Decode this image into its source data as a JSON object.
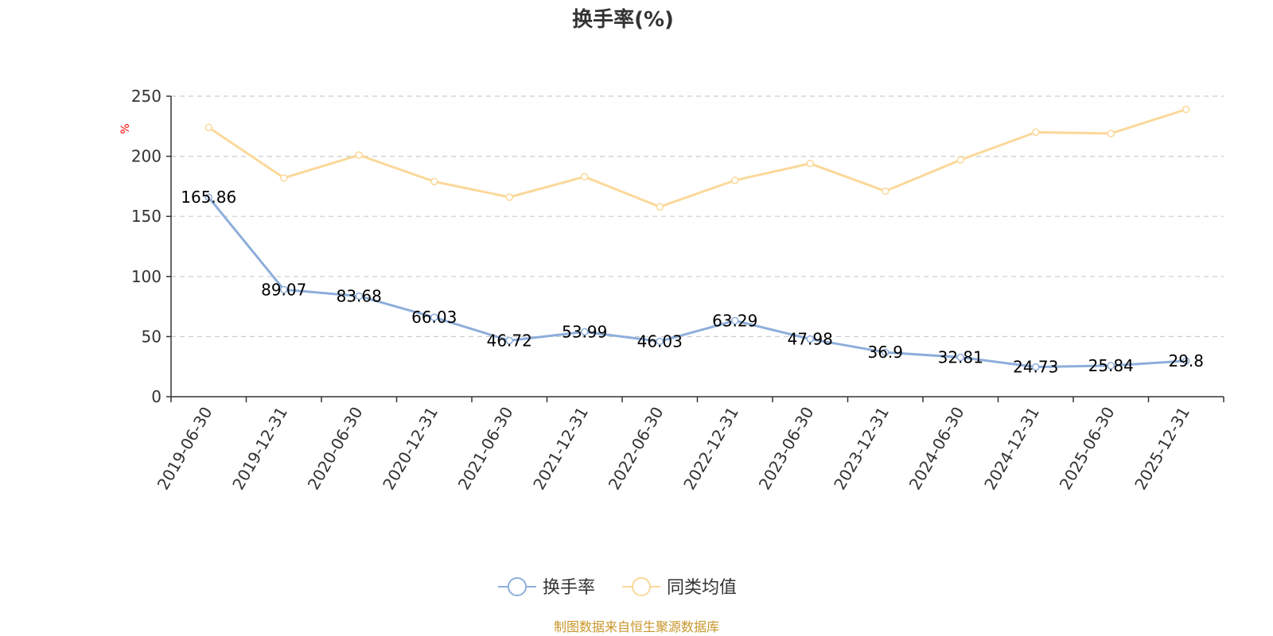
{
  "chart_data": {
    "type": "line",
    "title": "换手率(%)",
    "ylabel": "%",
    "xlabel": "",
    "ylim": [
      0,
      250
    ],
    "yticks": [
      0,
      50,
      100,
      150,
      200,
      250
    ],
    "grid": true,
    "categories": [
      "2019-06-30",
      "2019-12-31",
      "2020-06-30",
      "2020-12-31",
      "2021-06-30",
      "2021-12-31",
      "2022-06-30",
      "2022-12-31",
      "2023-06-30",
      "2023-12-31",
      "2024-06-30",
      "2024-12-31",
      "2025-06-30",
      "2025-12-31"
    ],
    "series": [
      {
        "name": "换手率",
        "color": "#8eaedb",
        "show_labels": true,
        "values": [
          165.86,
          89.07,
          83.68,
          66.03,
          46.72,
          53.99,
          46.03,
          63.29,
          47.98,
          36.9,
          32.81,
          24.73,
          25.84,
          29.8
        ],
        "labels": [
          "165.86",
          "89.07",
          "83.68",
          "66.03",
          "46.72",
          "53.99",
          "46.03",
          "63.29",
          "47.98",
          "36.9",
          "32.81",
          "24.73",
          "25.84",
          "29.8"
        ]
      },
      {
        "name": "同类均值",
        "color": "#fbd89a",
        "show_labels": false,
        "values": [
          224,
          182,
          201,
          179,
          166,
          183,
          158,
          180,
          194,
          171,
          197,
          220,
          219,
          239
        ]
      }
    ],
    "legend_position": "bottom-center",
    "source": "制图数据来自恒生聚源数据库",
    "colors": {
      "axis": "#333333",
      "grid": "#cccccc",
      "ylabel": "#ff0000",
      "source": "#c8962a"
    }
  }
}
